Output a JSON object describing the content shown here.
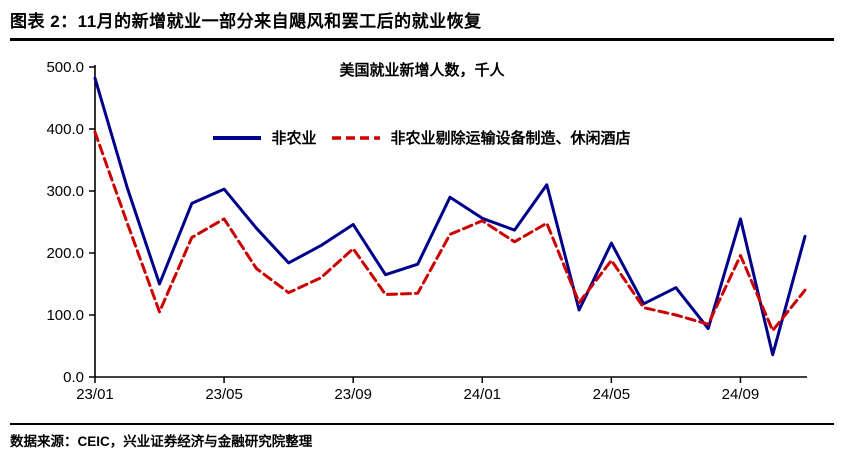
{
  "header": {
    "title": "图表 2：11月的新增就业一部分来自飓风和罢工后的就业恢复"
  },
  "footer": {
    "source": "数据来源：CEIC，兴业证券经济与金融研究院整理"
  },
  "colors": {
    "nonfarm_line": "#00008B",
    "ex_line": "#CC0000",
    "axis": "#000000",
    "text": "#000000"
  },
  "chart_data": {
    "type": "line",
    "title": "美国就业新增人数，千人",
    "xlabel": "",
    "ylabel": "",
    "grid": false,
    "legend_position": "top-center",
    "ylim": [
      0,
      500
    ],
    "y_ticks": [
      0,
      100,
      200,
      300,
      400,
      500
    ],
    "x": [
      "23/01",
      "23/02",
      "23/03",
      "23/04",
      "23/05",
      "23/06",
      "23/07",
      "23/08",
      "23/09",
      "23/10",
      "23/11",
      "23/12",
      "24/01",
      "24/02",
      "24/03",
      "24/04",
      "24/05",
      "24/06",
      "24/07",
      "24/08",
      "24/09",
      "24/10",
      "24/11"
    ],
    "x_tick_labels": [
      "23/01",
      "23/05",
      "23/09",
      "24/01",
      "24/05",
      "24/09"
    ],
    "x_tick_indices": [
      0,
      4,
      8,
      12,
      16,
      20
    ],
    "series": [
      {
        "name": "非农业",
        "color": "#00008B",
        "style": "solid",
        "values": [
          482,
          305,
          150,
          280,
          303,
          240,
          184,
          212,
          246,
          165,
          182,
          290,
          256,
          237,
          310,
          108,
          216,
          118,
          144,
          78,
          255,
          36,
          227
        ]
      },
      {
        "name": "非农业剔除运输设备制造、休闲酒店",
        "color": "#CC0000",
        "style": "dashed",
        "values": [
          395,
          248,
          105,
          225,
          255,
          175,
          136,
          160,
          207,
          133,
          135,
          230,
          252,
          218,
          248,
          120,
          188,
          112,
          100,
          85,
          196,
          75,
          140
        ]
      }
    ]
  }
}
